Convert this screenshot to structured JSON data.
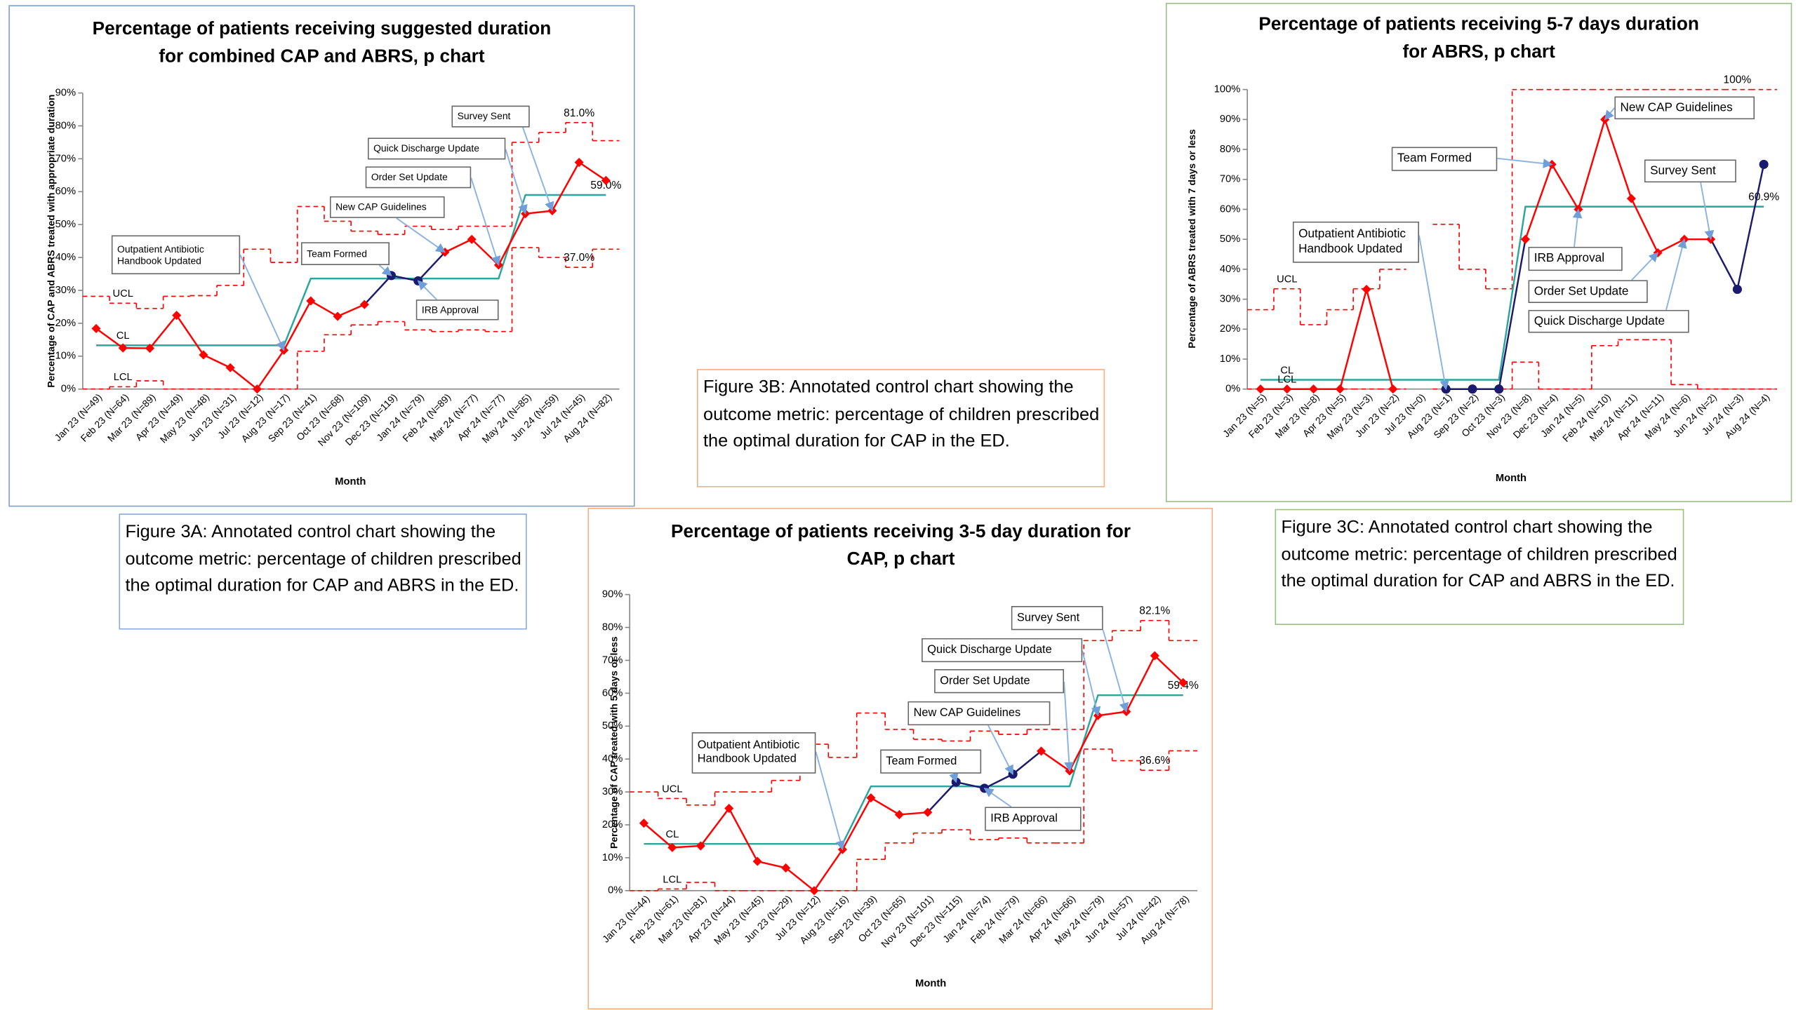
{
  "chart_data": [
    {
      "type": "p-chart",
      "title": "Percentage of patients receiving suggested duration for combined CAP and ABRS, p chart",
      "y_label": "Percentage of CAP and ABRS treated with appropriate duration",
      "x_label": "Month",
      "categories": [
        "Jan 23 (N=49)",
        "Feb 23 (N=64)",
        "Mar 23 (N=89)",
        "Apr 23 (N=49)",
        "May 23 (N=48)",
        "Jun 23 (N=31)",
        "Jul 23 (N=12)",
        "Aug 23 (N=17)",
        "Sep 23 (N=41)",
        "Oct 23 (N=68)",
        "Nov 23 (N=109)",
        "Dec 23 (N=119)",
        "Jan 24 (N=79)",
        "Feb 24 (N=89)",
        "Mar 24 (N=77)",
        "Apr 24 (N=77)",
        "May 24 (N=85)",
        "Jun 24 (N=59)",
        "Jul 24 (N=45)",
        "Aug 24 (N=82)"
      ],
      "ylim": [
        0,
        90
      ],
      "yticks": [
        {
          "value": 0,
          "label": "0%"
        },
        {
          "value": 10,
          "label": "10%"
        },
        {
          "value": 20,
          "label": "20%"
        },
        {
          "value": 30,
          "label": "30%"
        },
        {
          "value": 40,
          "label": "40%"
        },
        {
          "value": 50,
          "label": "50%"
        },
        {
          "value": 60,
          "label": "60%"
        },
        {
          "value": 70,
          "label": "70%"
        },
        {
          "value": 80,
          "label": "80%"
        },
        {
          "value": 90,
          "label": "90%"
        }
      ],
      "grid": false,
      "series": [
        {
          "name": "UCL",
          "color": "#ff0000",
          "line_style": "dashed",
          "step": true,
          "values": [
            28.2,
            26.1,
            24.5,
            28.2,
            28.4,
            31.5,
            42.5,
            38.5,
            55.5,
            51.0,
            48.0,
            47.0,
            49.5,
            48.5,
            49.5,
            49.5,
            75.0,
            78.0,
            81.0,
            75.5
          ],
          "value_labels": [
            null,
            null,
            null,
            null,
            null,
            null,
            null,
            null,
            null,
            null,
            null,
            null,
            null,
            null,
            null,
            null,
            null,
            null,
            "81.0%",
            null
          ]
        },
        {
          "name": "CL",
          "color": "#2ca59c",
          "line_style": "solid",
          "step": false,
          "values": [
            13.3,
            13.3,
            13.3,
            13.3,
            13.3,
            13.3,
            13.3,
            13.3,
            33.6,
            33.6,
            33.6,
            33.6,
            33.6,
            33.6,
            33.6,
            33.6,
            59.0,
            59.0,
            59.0,
            59.0
          ],
          "value_labels": [
            null,
            null,
            null,
            null,
            null,
            null,
            null,
            null,
            null,
            null,
            null,
            null,
            null,
            null,
            null,
            null,
            null,
            null,
            null,
            "59.0%"
          ]
        },
        {
          "name": "LCL",
          "color": "#ff0000",
          "line_style": "dashed",
          "step": true,
          "values": [
            0,
            0.7,
            2.5,
            0,
            0,
            0,
            0,
            0,
            11.5,
            16.5,
            19.5,
            20.5,
            18.0,
            17.5,
            18.0,
            17.5,
            43.0,
            40.0,
            37.0,
            42.5
          ],
          "value_labels": [
            null,
            null,
            null,
            null,
            null,
            null,
            null,
            null,
            null,
            null,
            null,
            null,
            null,
            null,
            null,
            null,
            null,
            null,
            "37.0%",
            null
          ]
        },
        {
          "color": "#ff0000",
          "line_style": "solid",
          "step": false,
          "values": [
            18.4,
            12.5,
            12.4,
            22.4,
            10.4,
            6.5,
            0,
            11.8,
            26.8,
            22.1,
            25.7,
            34.5,
            32.9,
            41.6,
            45.5,
            37.7,
            53.3,
            54.2,
            68.9,
            63.4
          ],
          "point_colors": [
            "#ff0000",
            "#ff0000",
            "#ff0000",
            "#ff0000",
            "#ff0000",
            "#ff0000",
            "#ff0000",
            "#ff0000",
            "#ff0000",
            "#ff0000",
            "#ff0000",
            "#1a1a6e",
            "#1a1a6e",
            "#ff0000",
            "#ff0000",
            "#ff0000",
            "#ff0000",
            "#ff0000",
            "#ff0000",
            "#ff0000"
          ]
        }
      ],
      "annotations": [
        "Outpatient Antibiotic Handbook Updated",
        "Team Formed",
        "IRB Approval",
        "New CAP Guidelines",
        "Order Set Update",
        "Quick Discharge Update",
        "Survey Sent"
      ]
    },
    {
      "type": "p-chart",
      "title": "Percentage of patients receiving 3-5 day duration for CAP, p chart",
      "y_label": "Percentage of CAP treated with 5 days or less",
      "x_label": "Month",
      "categories": [
        "Jan 23 (N=44)",
        "Feb 23 (N=61)",
        "Mar 23 (N=81)",
        "Apr 23 (N=44)",
        "May 23 (N=45)",
        "Jun 23 (N=29)",
        "Jul 23 (N=12)",
        "Aug 23 (N=16)",
        "Sep 23 (N=39)",
        "Oct 23 (N=65)",
        "Nov 23 (N=101)",
        "Dec 23 (N=115)",
        "Jan 24 (N=74)",
        "Feb 24 (N=79)",
        "Mar 24 (N=66)",
        "Apr 24 (N=66)",
        "May 24 (N=79)",
        "Jun 24 (N=57)",
        "Jul 24 (N=42)",
        "Aug 24 (N=78)"
      ],
      "ylim": [
        0,
        90
      ],
      "yticks": [
        {
          "value": 0,
          "label": "0%"
        },
        {
          "value": 10,
          "label": "10%"
        },
        {
          "value": 20,
          "label": "20%"
        },
        {
          "value": 30,
          "label": "30%"
        },
        {
          "value": 40,
          "label": "40%"
        },
        {
          "value": 50,
          "label": "50%"
        },
        {
          "value": 60,
          "label": "60%"
        },
        {
          "value": 70,
          "label": "70%"
        },
        {
          "value": 80,
          "label": "80%"
        },
        {
          "value": 90,
          "label": "90%"
        }
      ],
      "grid": false,
      "series": [
        {
          "name": "UCL",
          "color": "#ff0000",
          "line_style": "dashed",
          "step": true,
          "values": [
            30,
            28,
            26,
            30,
            30,
            33.5,
            44.5,
            40.5,
            54,
            49,
            46,
            45.5,
            48.5,
            47.5,
            49,
            49,
            76,
            79,
            82.1,
            76
          ],
          "value_labels": [
            null,
            null,
            null,
            null,
            null,
            null,
            null,
            null,
            null,
            null,
            null,
            null,
            null,
            null,
            null,
            null,
            null,
            null,
            "82.1%",
            null
          ]
        },
        {
          "name": "CL",
          "color": "#2ca59c",
          "line_style": "solid",
          "step": false,
          "values": [
            14.2,
            14.2,
            14.2,
            14.2,
            14.2,
            14.2,
            14.2,
            14.2,
            31.7,
            31.7,
            31.7,
            31.7,
            31.7,
            31.7,
            31.7,
            31.7,
            59.4,
            59.4,
            59.4,
            59.4
          ],
          "value_labels": [
            null,
            null,
            null,
            null,
            null,
            null,
            null,
            null,
            null,
            null,
            null,
            null,
            null,
            null,
            null,
            null,
            null,
            null,
            null,
            "59.4%"
          ]
        },
        {
          "name": "LCL",
          "color": "#ff0000",
          "line_style": "dashed",
          "step": true,
          "values": [
            0,
            0.5,
            2.5,
            0,
            0,
            0,
            0,
            0,
            9.5,
            14.5,
            17.5,
            18.5,
            15.5,
            16,
            14.5,
            14.5,
            43,
            39.5,
            36.6,
            42.5
          ],
          "value_labels": [
            null,
            null,
            null,
            null,
            null,
            null,
            null,
            null,
            null,
            null,
            null,
            null,
            null,
            null,
            null,
            null,
            null,
            null,
            "36.6%",
            null
          ]
        },
        {
          "color": "#ff0000",
          "line_style": "solid",
          "step": false,
          "values": [
            20.5,
            13.1,
            13.6,
            25.0,
            8.9,
            6.9,
            0,
            12.5,
            28.2,
            23.1,
            23.8,
            33.0,
            31.1,
            35.4,
            42.4,
            36.4,
            53.2,
            54.4,
            71.4,
            63.2
          ],
          "point_colors": [
            "#ff0000",
            "#ff0000",
            "#ff0000",
            "#ff0000",
            "#ff0000",
            "#ff0000",
            "#ff0000",
            "#ff0000",
            "#ff0000",
            "#ff0000",
            "#ff0000",
            "#1a1a6e",
            "#1a1a6e",
            "#1a1a6e",
            "#ff0000",
            "#ff0000",
            "#ff0000",
            "#ff0000",
            "#ff0000",
            "#ff0000"
          ]
        }
      ],
      "annotations": [
        "Outpatient Antibiotic Handbook Updated",
        "Team Formed",
        "IRB Approval",
        "New CAP Guidelines",
        "Order Set Update",
        "Quick Discharge Update",
        "Survey Sent"
      ]
    },
    {
      "type": "p-chart",
      "title": "Percentage of patients receiving 5-7 days duration for ABRS, p chart",
      "y_label": "Percentage of ABRS treated with 7 days or less",
      "x_label": "Month",
      "categories": [
        "Jan 23 (N=5)",
        "Feb 23 (N=3)",
        "Mar 23 (N=8)",
        "Apr 23 (N=5)",
        "May 23 (N=3)",
        "Jun 23 (N=2)",
        "Jul 23 (N=0)",
        "Aug 23 (N=1)",
        "Sep 23 (N=2)",
        "Oct 23 (N=3)",
        "Nov 23 (N=8)",
        "Dec 23 (N=4)",
        "Jan 24 (N=5)",
        "Feb 24 (N=10)",
        "Mar 24 (N=11)",
        "Apr 24 (N=11)",
        "May 24 (N=6)",
        "Jun 24 (N=2)",
        "Jul 24 (N=3)",
        "Aug 24 (N=4)"
      ],
      "ylim": [
        0,
        100
      ],
      "yticks": [
        {
          "value": 0,
          "label": "0%"
        },
        {
          "value": 10,
          "label": "10%"
        },
        {
          "value": 20,
          "label": "20%"
        },
        {
          "value": 30,
          "label": "30%"
        },
        {
          "value": 40,
          "label": "40%"
        },
        {
          "value": 50,
          "label": "50%"
        },
        {
          "value": 60,
          "label": "60%"
        },
        {
          "value": 70,
          "label": "70%"
        },
        {
          "value": 80,
          "label": "80%"
        },
        {
          "value": 90,
          "label": "90%"
        },
        {
          "value": 100,
          "label": "100%"
        }
      ],
      "grid": false,
      "series": [
        {
          "name": "UCL",
          "color": "#ff0000",
          "line_style": "dashed",
          "step": true,
          "values": [
            26.5,
            33.5,
            21.5,
            26.5,
            33.5,
            40,
            null,
            55,
            40,
            33.5,
            100,
            100,
            100,
            100,
            100,
            100,
            100,
            100,
            100,
            100
          ],
          "value_labels": [
            null,
            null,
            null,
            null,
            null,
            null,
            null,
            null,
            null,
            null,
            null,
            null,
            null,
            null,
            null,
            null,
            null,
            null,
            "100%",
            null
          ]
        },
        {
          "name": "CL",
          "color": "#2ca59c",
          "line_style": "solid",
          "step": false,
          "values": [
            3.1,
            3.1,
            3.1,
            3.1,
            3.1,
            3.1,
            3.1,
            3.1,
            3.1,
            3.1,
            60.9,
            60.9,
            60.9,
            60.9,
            60.9,
            60.9,
            60.9,
            60.9,
            60.9,
            60.9
          ],
          "value_labels": [
            null,
            null,
            null,
            null,
            null,
            null,
            null,
            null,
            null,
            null,
            null,
            null,
            null,
            null,
            null,
            null,
            null,
            null,
            null,
            "60.9%"
          ]
        },
        {
          "name": "LCL",
          "color": "#ff0000",
          "line_style": "dashed",
          "step": true,
          "values": [
            0,
            0,
            0,
            0,
            0,
            0,
            null,
            0,
            0,
            0,
            9,
            0,
            0,
            14.5,
            16.5,
            16.5,
            1.5,
            0,
            0,
            0
          ]
        },
        {
          "color": "#ff0000",
          "line_style": "solid",
          "step": false,
          "values": [
            0,
            0,
            0,
            0,
            33.3,
            0,
            null,
            0,
            0,
            0,
            50,
            75,
            60,
            90,
            63.6,
            45.5,
            50,
            50,
            33.3,
            75
          ],
          "point_colors": [
            "#ff0000",
            "#ff0000",
            "#ff0000",
            "#ff0000",
            "#ff0000",
            "#ff0000",
            "#ff0000",
            "#1a1a6e",
            "#1a1a6e",
            "#1a1a6e",
            "#ff0000",
            "#ff0000",
            "#ff0000",
            "#ff0000",
            "#ff0000",
            "#ff0000",
            "#ff0000",
            "#ff0000",
            "#1a1a6e",
            "#1a1a6e"
          ]
        }
      ],
      "annotations": [
        "Outpatient Antibiotic Handbook Updated",
        "Team Formed",
        "IRB Approval",
        "New CAP Guidelines",
        "Survey Sent",
        "Order Set Update",
        "Quick Discharge Update"
      ]
    }
  ],
  "captions": [
    "Figure 3A: Annotated control chart showing the outcome metric: percentage of children prescribed the optimal duration for CAP and ABRS in the ED.",
    "Figure 3B: Annotated control chart showing the outcome metric: percentage of children prescribed the optimal duration for CAP in the ED.",
    "Figure 3C: Annotated control chart showing the outcome metric: percentage of children prescribed the optimal duration for CAP and ABRS in the ED."
  ]
}
